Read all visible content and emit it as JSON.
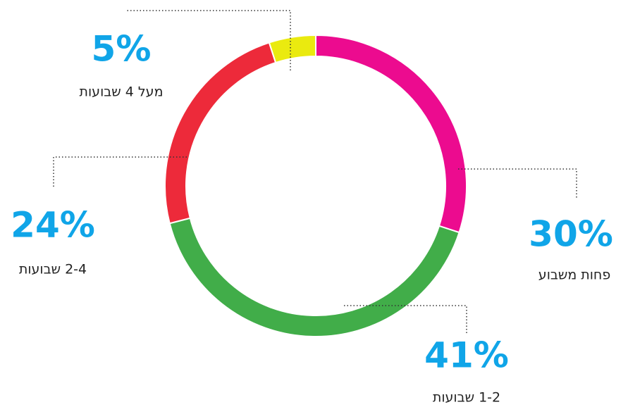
{
  "chart_data": {
    "type": "donut",
    "categories": [
      "פחות משבוע",
      "1-2 שבועות",
      "2-4 שבועות",
      "מעל 4 שבועות"
    ],
    "values": [
      30,
      41,
      24,
      5
    ],
    "value_labels": [
      "30%",
      "41%",
      "24%",
      "5%"
    ],
    "colors": [
      "#ec0b8f",
      "#41ad49",
      "#ed2a3a",
      "#eaea0f"
    ],
    "label_color": "#10a5e8"
  }
}
